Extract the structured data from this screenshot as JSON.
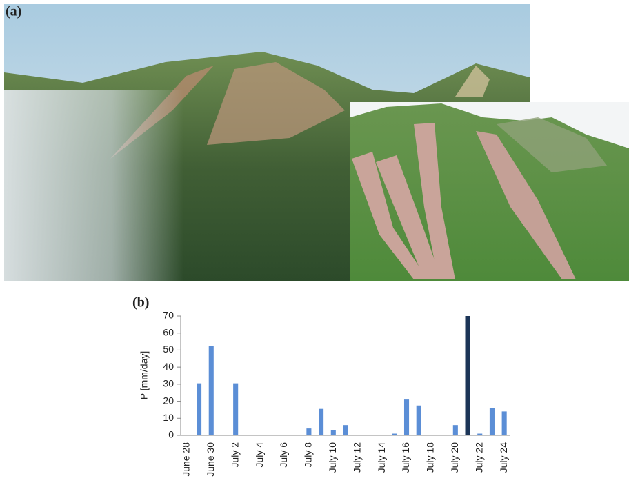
{
  "figure": {
    "panel_a_label": "(a)",
    "panel_b_label": "(b)"
  },
  "chart_data": {
    "type": "bar",
    "y_label": "P [mm/day]",
    "categories": [
      "June 28",
      null,
      "June 30",
      null,
      "July 2",
      null,
      "July 4",
      null,
      "July 6",
      null,
      "July 8",
      null,
      "July 10",
      null,
      "July 12",
      null,
      "July 14",
      null,
      "July 16",
      null,
      "July 18",
      null,
      "July 20",
      null,
      "July 22",
      null,
      "July 24"
    ],
    "values": [
      0,
      30.5,
      52.5,
      0,
      30.5,
      0,
      0,
      0,
      0,
      0,
      4,
      15.5,
      3,
      6,
      0,
      0,
      0,
      1,
      21,
      17.5,
      0,
      0,
      6,
      70,
      1,
      16,
      14
    ],
    "colors": [
      "#5b8ed6",
      "#5b8ed6",
      "#5b8ed6",
      "#5b8ed6",
      "#5b8ed6",
      "#5b8ed6",
      "#5b8ed6",
      "#5b8ed6",
      "#5b8ed6",
      "#5b8ed6",
      "#5b8ed6",
      "#5b8ed6",
      "#5b8ed6",
      "#5b8ed6",
      "#5b8ed6",
      "#5b8ed6",
      "#5b8ed6",
      "#5b8ed6",
      "#5b8ed6",
      "#5b8ed6",
      "#5b8ed6",
      "#5b8ed6",
      "#5b8ed6",
      "#1c3557",
      "#5b8ed6",
      "#5b8ed6",
      "#5b8ed6"
    ],
    "ylim": [
      0,
      70
    ],
    "yticks": [
      0,
      10,
      20,
      30,
      40,
      50,
      60,
      70
    ],
    "grid": false
  }
}
